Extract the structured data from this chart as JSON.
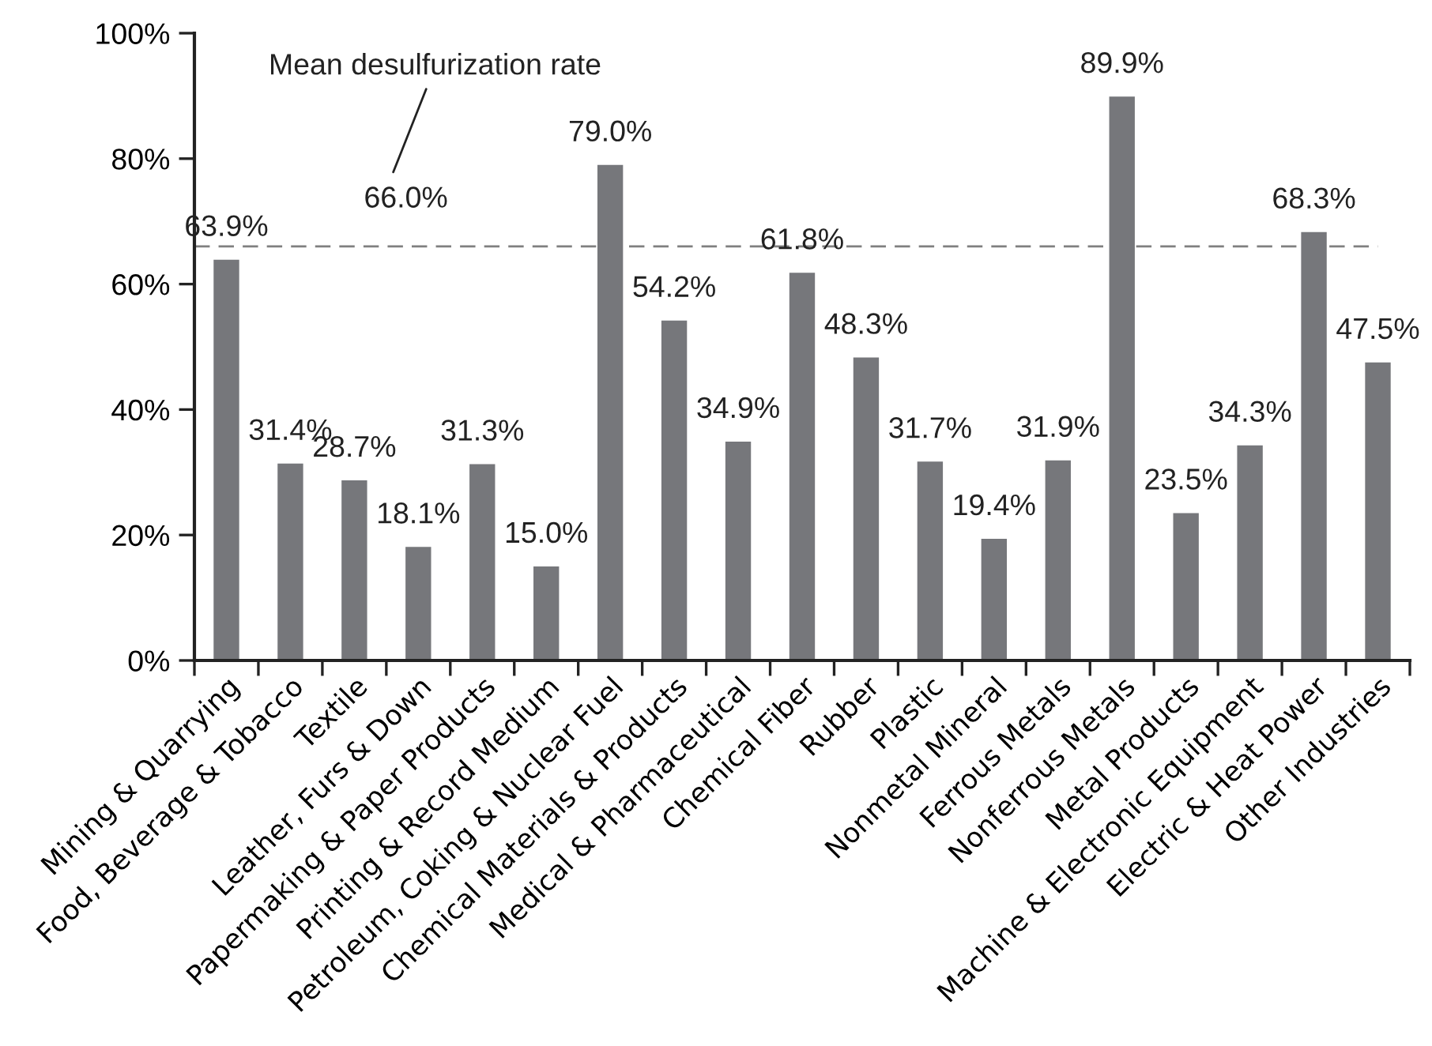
{
  "chart_data": {
    "type": "bar",
    "categories": [
      "Mining & Quarrying",
      "Food, Beverage & Tobacco",
      "Textile",
      "Leather, Furs & Down",
      "Papermaking & Paper Products",
      "Printing & Record Medium",
      "Petroleum, Coking & Nuclear Fuel",
      "Chemical Materials & Products",
      "Medical & Pharmaceutical",
      "Chemical Fiber",
      "Rubber",
      "Plastic",
      "Nonmetal Mineral",
      "Ferrous Metals",
      "Nonferrous Metals",
      "Metal Products",
      "Machine & Electronic Equipment",
      "Electric & Heat Power",
      "Other Industries"
    ],
    "values": [
      63.9,
      31.4,
      28.7,
      18.1,
      31.3,
      15.0,
      79.0,
      54.2,
      34.9,
      61.8,
      48.3,
      31.7,
      19.4,
      31.9,
      89.9,
      23.5,
      34.3,
      68.3,
      47.5
    ],
    "value_labels": [
      "63.9%",
      "31.4%",
      "28.7%",
      "18.1%",
      "31.3%",
      "15.0%",
      "79.0%",
      "54.2%",
      "34.9%",
      "61.8%",
      "48.3%",
      "31.7%",
      "19.4%",
      "31.9%",
      "89.9%",
      "23.5%",
      "34.3%",
      "68.3%",
      "47.5%"
    ],
    "color": "#76777b",
    "ylim": [
      0,
      100
    ],
    "yticks": [
      {
        "value": 0,
        "label": "0%"
      },
      {
        "value": 20,
        "label": "20%"
      },
      {
        "value": 40,
        "label": "40%"
      },
      {
        "value": 60,
        "label": "60%"
      },
      {
        "value": 80,
        "label": "80%"
      },
      {
        "value": 100,
        "label": "100%"
      }
    ],
    "ref_lines": [
      {
        "axis": "y",
        "value": 66.0,
        "label": "66.0%",
        "color": "#808080",
        "line_style": "dashed"
      }
    ],
    "annotations": [
      "Mean desulfurization rate"
    ]
  }
}
